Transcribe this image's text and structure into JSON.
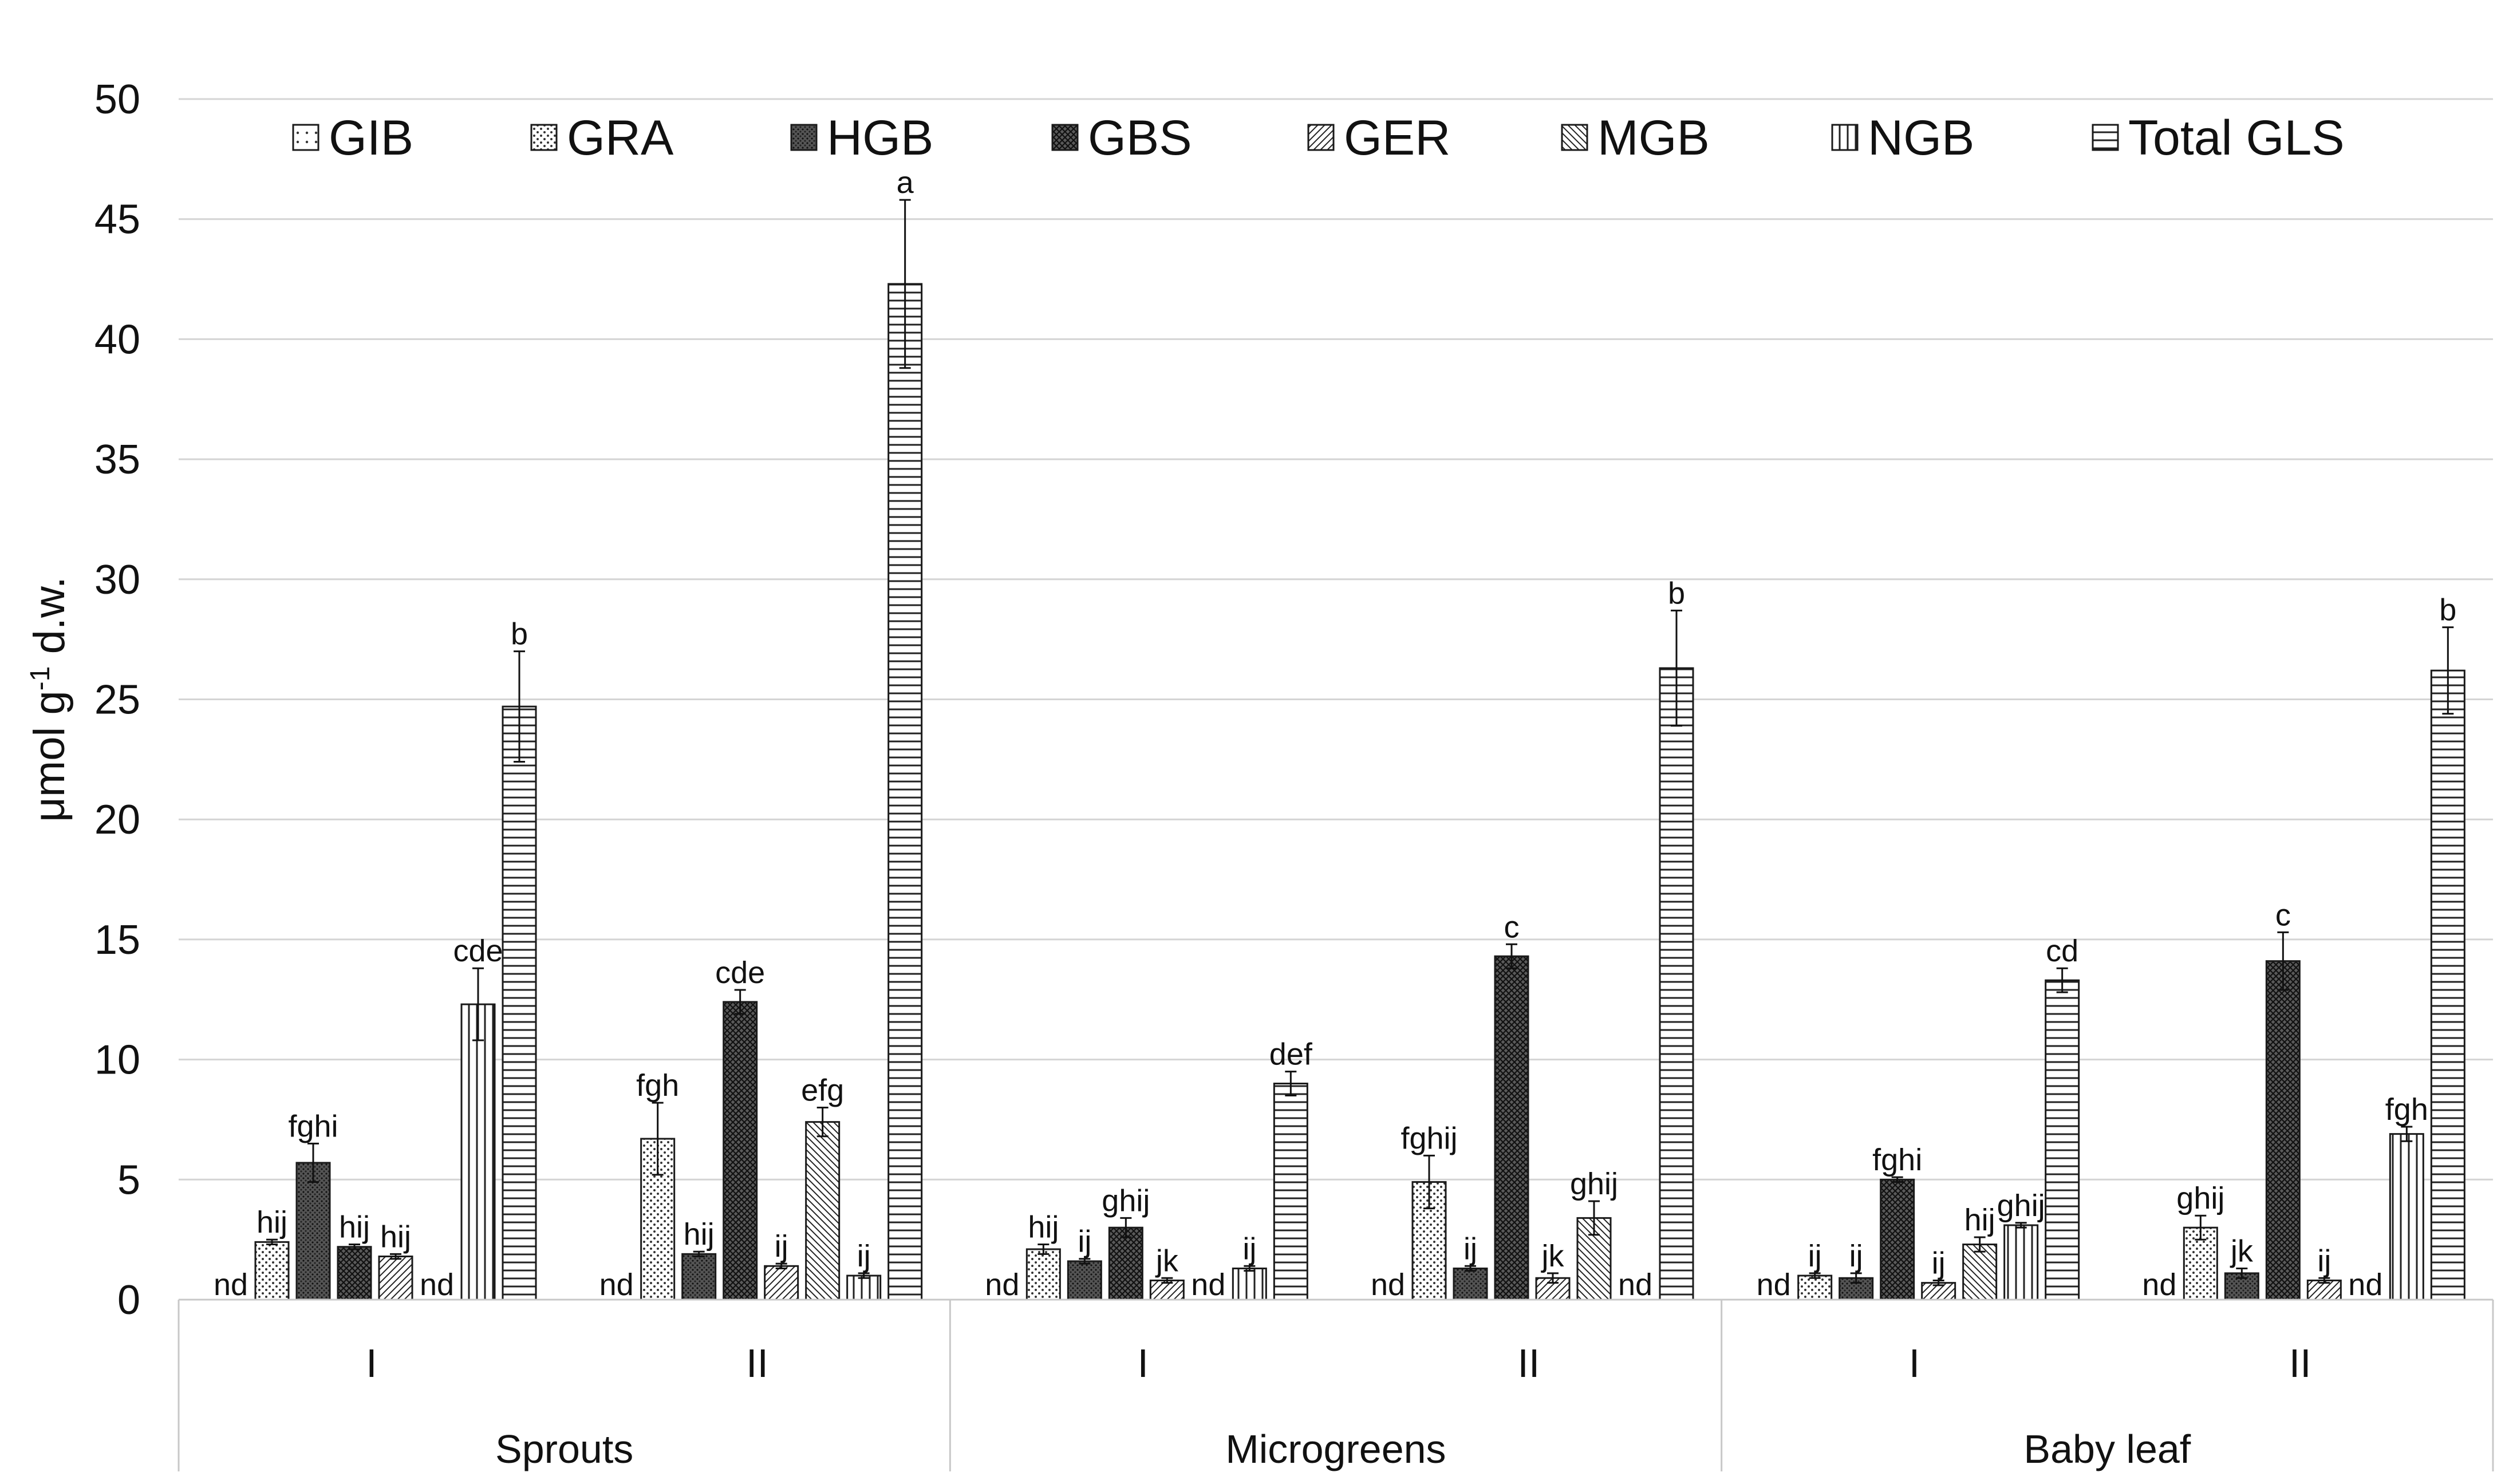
{
  "chart_data": {
    "type": "bar",
    "ylabel": "μmol g⁻¹ d.w.",
    "ylabel_parts": {
      "base": "μmol g",
      "sup": "-1",
      "rest": " d.w."
    },
    "ylim": [
      0,
      50
    ],
    "yticks": [
      0,
      5,
      10,
      15,
      20,
      25,
      30,
      35,
      40,
      45,
      50
    ],
    "grid": true,
    "legend_position": "top",
    "groups": [
      {
        "name": "Sprouts",
        "subgroups": [
          "I",
          "II"
        ]
      },
      {
        "name": "Microgreens",
        "subgroups": [
          "I",
          "II"
        ]
      },
      {
        "name": "Baby leaf",
        "subgroups": [
          "I",
          "II"
        ]
      }
    ],
    "categories": [
      "Sprouts I",
      "Sprouts II",
      "Microgreens I",
      "Microgreens II",
      "Baby leaf I",
      "Baby leaf II"
    ],
    "not_detected_label": "nd",
    "series": [
      {
        "name": "GIB",
        "pattern": "dots-sparse",
        "values": [
          0,
          0,
          0,
          0,
          0,
          0
        ],
        "errors": [
          0,
          0,
          0,
          0,
          0,
          0
        ],
        "letters": [
          "nd",
          "nd",
          "nd",
          "nd",
          "nd",
          "nd"
        ]
      },
      {
        "name": "GRA",
        "pattern": "dots",
        "values": [
          2.4,
          6.7,
          2.1,
          4.9,
          1.0,
          3.0
        ],
        "errors": [
          0.1,
          1.5,
          0.2,
          1.1,
          0.1,
          0.5
        ],
        "letters": [
          "hij",
          "fgh",
          "hij",
          "fghij",
          "ij",
          "ghij"
        ]
      },
      {
        "name": "HGB",
        "pattern": "dark-dots",
        "values": [
          5.7,
          1.9,
          1.6,
          1.3,
          0.9,
          1.1
        ],
        "errors": [
          0.8,
          0.1,
          0.1,
          0.1,
          0.2,
          0.2
        ],
        "letters": [
          "fghi",
          "hij",
          "ij",
          "ij",
          "ij",
          "jk"
        ]
      },
      {
        "name": "GBS",
        "pattern": "crosshatch",
        "values": [
          2.2,
          12.4,
          3.0,
          14.3,
          5.0,
          14.1
        ],
        "errors": [
          0.1,
          0.5,
          0.4,
          0.5,
          0.1,
          1.2
        ],
        "letters": [
          "hij",
          "cde",
          "ghij",
          "c",
          "fghi",
          "c"
        ]
      },
      {
        "name": "GER",
        "pattern": "diag-right",
        "values": [
          1.8,
          1.4,
          0.8,
          0.9,
          0.7,
          0.8
        ],
        "errors": [
          0.1,
          0.1,
          0.1,
          0.2,
          0.1,
          0.1
        ],
        "letters": [
          "hij",
          "ij",
          "jk",
          "jk",
          "ij",
          "ij"
        ]
      },
      {
        "name": "MGB",
        "pattern": "diag-left",
        "values": [
          0,
          7.4,
          0,
          3.4,
          2.3,
          0
        ],
        "errors": [
          0,
          0.6,
          0,
          0.7,
          0.3,
          0
        ],
        "letters": [
          "nd",
          "efg",
          "nd",
          "ghij",
          "hij",
          "nd"
        ]
      },
      {
        "name": "NGB",
        "pattern": "vertical",
        "values": [
          12.3,
          1.0,
          1.3,
          0,
          3.1,
          6.9
        ],
        "errors": [
          1.5,
          0.1,
          0.1,
          0,
          0.1,
          0.3
        ],
        "letters": [
          "cde",
          "ij",
          "ij",
          "nd",
          "ghij",
          "fgh"
        ]
      },
      {
        "name": "Total GLS",
        "pattern": "horizontal",
        "values": [
          24.7,
          42.3,
          9.0,
          26.3,
          13.3,
          26.2
        ],
        "errors": [
          2.3,
          3.5,
          0.5,
          2.4,
          0.5,
          1.8
        ],
        "letters": [
          "b",
          "a",
          "def",
          "b",
          "cd",
          "b"
        ]
      }
    ]
  }
}
